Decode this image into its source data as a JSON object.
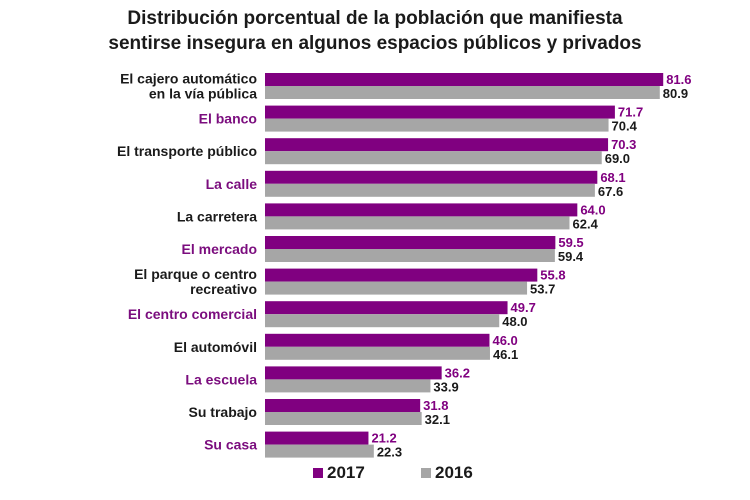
{
  "chart_data": {
    "type": "bar",
    "orientation": "horizontal",
    "title_lines": [
      "Distribución porcentual de la población que manifiesta",
      "sentirse insegura en algunos espacios públicos y privados"
    ],
    "categories": [
      [
        "El cajero automático",
        "en la vía pública"
      ],
      [
        "El banco"
      ],
      [
        "El transporte público"
      ],
      [
        "La calle"
      ],
      [
        "La carretera"
      ],
      [
        "El mercado"
      ],
      [
        "El parque o centro",
        "recreativo"
      ],
      [
        "El centro comercial"
      ],
      [
        "El automóvil"
      ],
      [
        "La escuela"
      ],
      [
        "Su trabajo"
      ],
      [
        "Su casa"
      ]
    ],
    "category_colors": [
      "#1a1a1a",
      "#7b0d7e",
      "#1a1a1a",
      "#7b0d7e",
      "#1a1a1a",
      "#7b0d7e",
      "#1a1a1a",
      "#7b0d7e",
      "#1a1a1a",
      "#7b0d7e",
      "#1a1a1a",
      "#7b0d7e"
    ],
    "series": [
      {
        "name": "2017",
        "color": "#800080",
        "values": [
          81.6,
          71.7,
          70.3,
          68.1,
          64.0,
          59.5,
          55.8,
          49.7,
          46.0,
          36.2,
          31.8,
          21.2
        ]
      },
      {
        "name": "2016",
        "color": "#a6a6a6",
        "values": [
          80.9,
          70.4,
          69.0,
          67.6,
          62.4,
          59.4,
          53.7,
          48.0,
          46.1,
          33.9,
          32.1,
          22.3
        ]
      }
    ],
    "value_labels": [
      [
        "81.6",
        "71.7",
        "70.3",
        "68.1",
        "64.0",
        "59.5",
        "55.8",
        "49.7",
        "46.0",
        "36.2",
        "31.8",
        "21.2"
      ],
      [
        "80.9",
        "70.4",
        "69.0",
        "67.6",
        "62.4",
        "59.4",
        "53.7",
        "48.0",
        "46.1",
        "33.9",
        "32.1",
        "22.3"
      ]
    ],
    "xlim": [
      0,
      100
    ],
    "grid": false,
    "legend_position": "bottom"
  }
}
